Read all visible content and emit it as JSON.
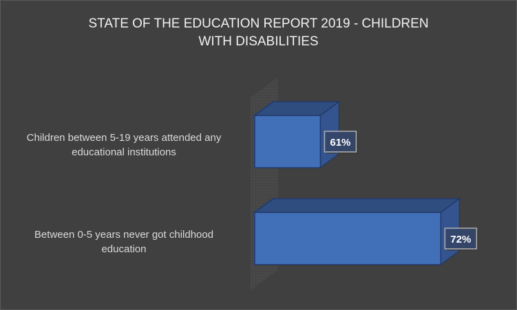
{
  "chart_data": {
    "type": "bar",
    "orientation": "horizontal",
    "style": "3d",
    "title": "STATE OF THE EDUCATION REPORT 2019 - CHILDREN WITH DISABILITIES",
    "title_lines": [
      "STATE OF THE EDUCATION  REPORT 2019 - CHILDREN",
      "WITH DISABILITIES"
    ],
    "categories": [
      "Children between 5-19 years attended any educational institutions",
      "Between 0-5 years never got childhood education"
    ],
    "category_lines": [
      [
        "Children between 5-19 years attended any",
        "educational institutions"
      ],
      [
        "Between 0-5 years never got childhood",
        "education"
      ]
    ],
    "values": [
      61,
      72
    ],
    "data_labels": [
      "61%",
      "72%"
    ],
    "unit": "%",
    "xlim": [
      55,
      80
    ],
    "grid": false,
    "legend": "none",
    "colors": {
      "bar": "#4472c4",
      "background": "#404040",
      "text": "#d9d9d9"
    }
  }
}
